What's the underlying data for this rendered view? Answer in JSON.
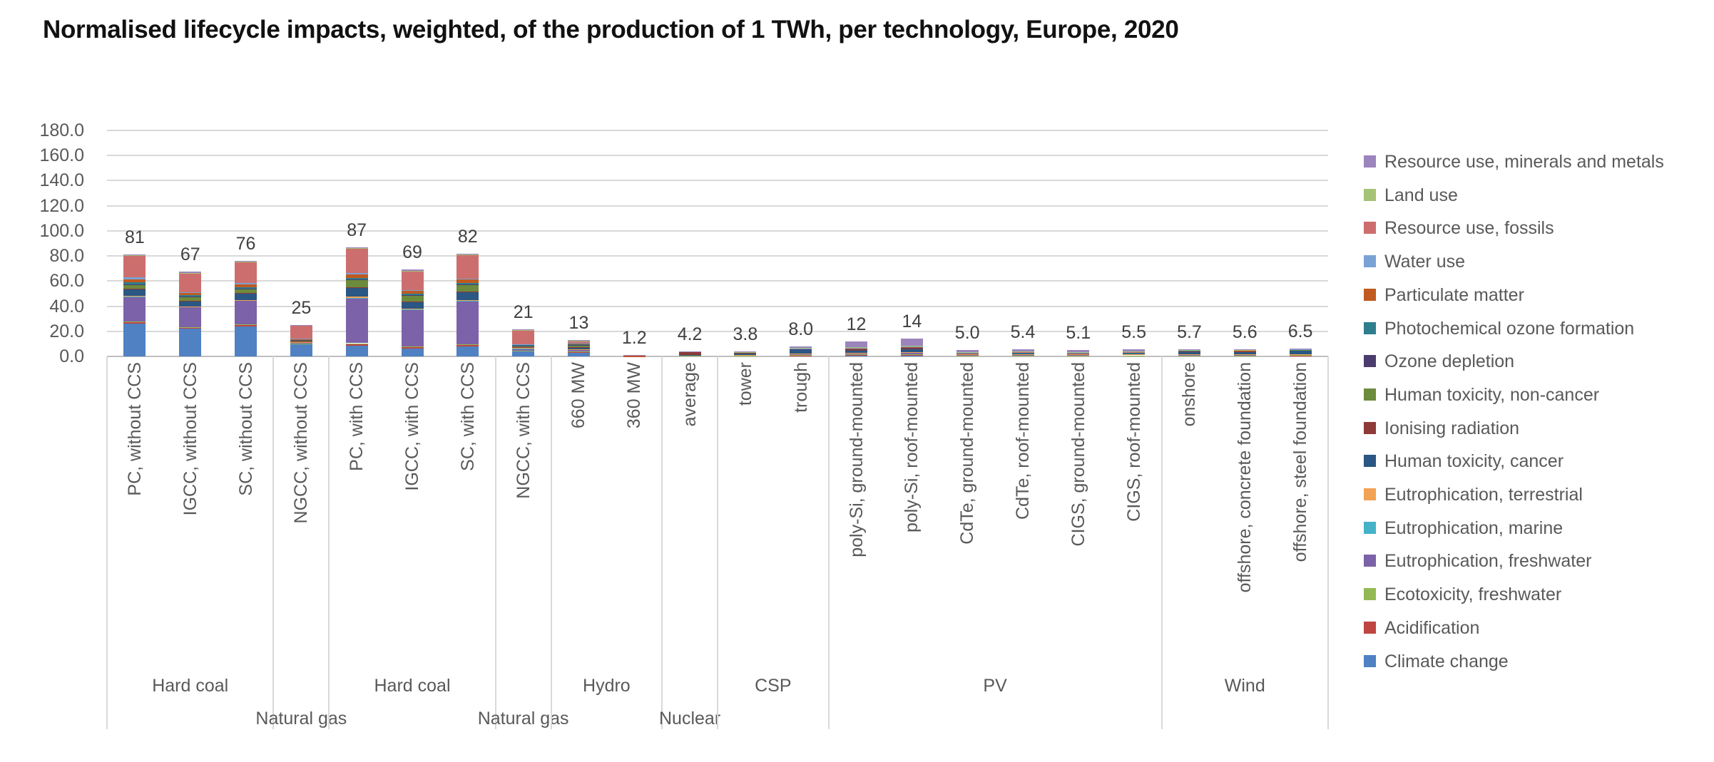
{
  "chart_data": {
    "type": "bar",
    "stacked": true,
    "title": "Normalised lifecycle impacts, weighted, of the production of 1 TWh, per technology, Europe, 2020",
    "ylim": [
      0,
      180
    ],
    "y_tick_step": 20,
    "y_ticks": [
      "180.0",
      "160.0",
      "140.0",
      "120.0",
      "100.0",
      "80.0",
      "60.0",
      "40.0",
      "20.0",
      "0.0"
    ],
    "grid": true,
    "legend_position": "right",
    "categories": [
      "PC, without CCS",
      "IGCC, without CCS",
      "SC, without CCS",
      "NGCC, without CCS",
      "PC, with CCS",
      "IGCC, with CCS",
      "SC, with CCS",
      "NGCC, with CCS",
      "660 MW",
      "360 MW",
      "average",
      "tower",
      "trough",
      "poly-Si, ground-mounted",
      "poly-Si, roof-mounted",
      "CdTe, ground-mounted",
      "CdTe, roof-mounted",
      "CIGS, ground-mounted",
      "CIGS, roof-mounted",
      "onshore",
      "offshore, concrete foundation",
      "offshore, steel foundation"
    ],
    "bar_totals": [
      81,
      67,
      76,
      25,
      87,
      69,
      82,
      21,
      13,
      1.2,
      4.2,
      3.8,
      8.0,
      12,
      14,
      5.0,
      5.4,
      5.1,
      5.5,
      5.7,
      5.6,
      6.5
    ],
    "bar_total_labels": [
      "81",
      "67",
      "76",
      "25",
      "87",
      "69",
      "82",
      "21",
      "13",
      "1.2",
      "4.2",
      "3.8",
      "8.0",
      "12",
      "14",
      "5.0",
      "5.4",
      "5.1",
      "5.5",
      "5.7",
      "5.6",
      "6.5"
    ],
    "groups": [
      {
        "label": "Hard coal",
        "count": 3,
        "row": 1
      },
      {
        "label": "Natural gas",
        "count": 1,
        "row": 2
      },
      {
        "label": "Hard coal",
        "count": 3,
        "row": 1
      },
      {
        "label": "Natural gas",
        "count": 1,
        "row": 2
      },
      {
        "label": "Hydro",
        "count": 2,
        "row": 1
      },
      {
        "label": "Nuclear",
        "count": 1,
        "row": 2
      },
      {
        "label": "CSP",
        "count": 2,
        "row": 1
      },
      {
        "label": "PV",
        "count": 6,
        "row": 1
      },
      {
        "label": "Wind",
        "count": 3,
        "row": 1
      }
    ],
    "series": [
      {
        "name": "Climate change",
        "color": "#4f81c3",
        "values": [
          26,
          22,
          24,
          10,
          8.5,
          6.5,
          8,
          4,
          3,
          0.2,
          0.6,
          0.3,
          0.5,
          0.8,
          0.9,
          0.4,
          0.4,
          0.4,
          0.45,
          0.35,
          0.35,
          0.4
        ]
      },
      {
        "name": "Acidification",
        "color": "#bf4540",
        "values": [
          1.2,
          1.0,
          1.1,
          0.4,
          1.5,
          1.2,
          1.4,
          0.5,
          0.8,
          0.05,
          0.1,
          0.15,
          0.3,
          0.3,
          0.4,
          0.15,
          0.2,
          0.15,
          0.2,
          0.2,
          0.2,
          0.25
        ]
      },
      {
        "name": "Ecotoxicity, freshwater",
        "color": "#93b954",
        "values": [
          0.4,
          0.3,
          0.4,
          0.1,
          0.5,
          0.4,
          0.5,
          0.2,
          0.3,
          0.02,
          0.05,
          0.1,
          0.5,
          0.5,
          0.6,
          0.2,
          0.2,
          0.2,
          0.2,
          0.25,
          0.22,
          0.25
        ]
      },
      {
        "name": "Eutrophication, freshwater",
        "color": "#7c62a8",
        "values": [
          20,
          16,
          19,
          0.8,
          36,
          29,
          34,
          1.5,
          1.2,
          0.15,
          0.3,
          0.5,
          1.0,
          1.2,
          1.5,
          0.6,
          0.65,
          0.6,
          0.65,
          0.7,
          0.65,
          0.75
        ]
      },
      {
        "name": "Eutrophication, marine",
        "color": "#45b2c9",
        "values": [
          0.2,
          0.2,
          0.2,
          0.1,
          0.3,
          0.3,
          0.3,
          0.1,
          0.2,
          0.01,
          0.02,
          0.02,
          0.05,
          0.05,
          0.05,
          0.02,
          0.02,
          0.02,
          0.02,
          0.02,
          0.03,
          0.03
        ]
      },
      {
        "name": "Eutrophication, terrestrial",
        "color": "#f2a254",
        "values": [
          0.3,
          0.2,
          0.3,
          0.2,
          0.8,
          0.5,
          0.7,
          0.3,
          0.4,
          0.02,
          0.05,
          0.05,
          0.1,
          0.1,
          0.15,
          0.05,
          0.05,
          0.05,
          0.05,
          0.06,
          0.06,
          0.07
        ]
      },
      {
        "name": "Human toxicity, cancer",
        "color": "#2a5783",
        "values": [
          5.5,
          4.5,
          5.0,
          0.5,
          7.0,
          5.5,
          6.5,
          0.8,
          1.0,
          0.1,
          0.25,
          1.7,
          2.8,
          2.2,
          2.3,
          1.0,
          1.0,
          1.0,
          1.0,
          2.6,
          2.6,
          3.1
        ]
      },
      {
        "name": "Ionising radiation",
        "color": "#8e3a38",
        "values": [
          0.3,
          0.3,
          0.3,
          0.1,
          0.4,
          0.4,
          0.4,
          0.2,
          0.3,
          0.02,
          2.2,
          0.08,
          0.15,
          0.15,
          0.15,
          0.08,
          0.08,
          0.08,
          0.08,
          0.07,
          0.07,
          0.08
        ]
      },
      {
        "name": "Human toxicity, non-cancer",
        "color": "#6d8b3c",
        "values": [
          3.5,
          3.0,
          3.3,
          0.6,
          6.0,
          5.0,
          5.5,
          0.8,
          1.5,
          0.12,
          0.15,
          0.3,
          0.5,
          0.6,
          0.9,
          0.25,
          0.3,
          0.25,
          0.3,
          0.35,
          0.33,
          0.4
        ]
      },
      {
        "name": "Ozone depletion",
        "color": "#4c3c6d",
        "values": [
          0.2,
          0.2,
          0.2,
          0.1,
          0.3,
          0.3,
          0.3,
          0.2,
          0.2,
          0.01,
          0.05,
          0.02,
          0.05,
          0.05,
          0.05,
          0.02,
          0.02,
          0.02,
          0.02,
          0.02,
          0.02,
          0.02
        ]
      },
      {
        "name": "Photochemical ozone formation",
        "color": "#2e7e8e",
        "values": [
          1.5,
          1.0,
          1.3,
          0.5,
          1.2,
          1.0,
          1.1,
          0.5,
          0.6,
          0.05,
          0.08,
          0.08,
          0.15,
          0.2,
          0.25,
          0.1,
          0.1,
          0.1,
          0.1,
          0.12,
          0.12,
          0.15
        ]
      },
      {
        "name": "Particulate matter",
        "color": "#c05a20",
        "values": [
          2.5,
          1.8,
          2.2,
          0.3,
          2.8,
          2.0,
          2.5,
          0.4,
          1.0,
          0.08,
          0.1,
          0.1,
          0.2,
          0.3,
          0.35,
          0.15,
          0.15,
          0.15,
          0.15,
          0.15,
          0.15,
          0.18
        ]
      },
      {
        "name": "Water use",
        "color": "#7ba2d6",
        "values": [
          1.4,
          0.5,
          1.0,
          0.3,
          1.0,
          0.8,
          0.9,
          0.4,
          0.3,
          0.02,
          0.05,
          0.05,
          0.1,
          0.2,
          0.2,
          0.1,
          0.1,
          0.1,
          0.1,
          0.08,
          0.08,
          0.08
        ]
      },
      {
        "name": "Resource use, fossils",
        "color": "#cd6e6e",
        "values": [
          17.5,
          15.5,
          17,
          10.8,
          19.5,
          15.2,
          19,
          11,
          1.5,
          0.12,
          0.1,
          0.15,
          0.4,
          0.6,
          0.7,
          0.35,
          0.3,
          0.35,
          0.35,
          0.25,
          0.25,
          0.3
        ]
      },
      {
        "name": "Land use",
        "color": "#a5c276",
        "values": [
          0.2,
          0.2,
          0.2,
          0.1,
          0.3,
          0.3,
          0.3,
          0.1,
          0.2,
          0.02,
          0.02,
          0.05,
          0.2,
          0.3,
          0.2,
          0.13,
          0.18,
          0.13,
          0.15,
          0.08,
          0.07,
          0.07
        ]
      },
      {
        "name": "Resource use, minerals and metals",
        "color": "#9c84bd",
        "values": [
          0.5,
          0.6,
          0.5,
          0.1,
          0.9,
          0.6,
          0.6,
          0.3,
          0.5,
          0.21,
          0.08,
          0.2,
          1.0,
          4.5,
          5.3,
          1.4,
          1.7,
          1.5,
          1.68,
          0.4,
          0.4,
          0.37
        ]
      }
    ]
  }
}
